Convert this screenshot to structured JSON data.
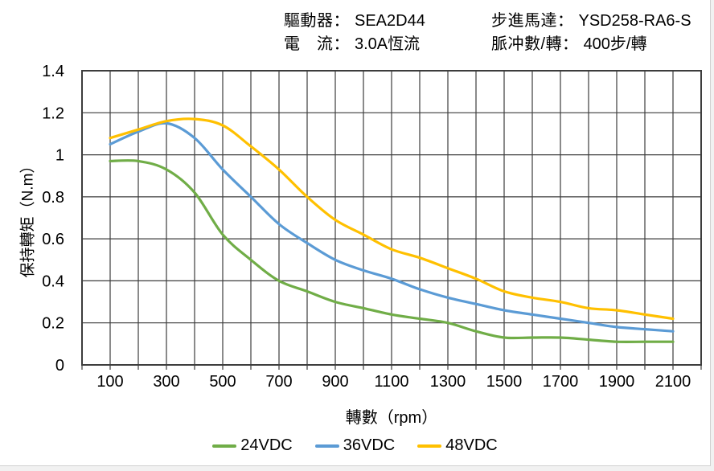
{
  "header": {
    "driver_label": "驅動器：",
    "driver_value": "SEA2D44",
    "current_label": "電　流：",
    "current_value": "3.0A恆流",
    "motor_label": "步進馬達：",
    "motor_value": "YSD258-RA6-S",
    "pulses_label": "脈冲數/轉：",
    "pulses_value": "400步/轉"
  },
  "colors": {
    "grid": "#3d3d3d",
    "text": "#000000",
    "background": "#ffffff",
    "series_green": "#70AD47",
    "series_blue": "#5B9BD5",
    "series_yellow": "#FFC000"
  },
  "chart_data": {
    "type": "line",
    "title": "",
    "xlabel": "轉數（rpm）",
    "ylabel": "保持轉矩（N.m）",
    "xlim": [
      0,
      2200
    ],
    "ylim": [
      0,
      1.4
    ],
    "x_grid_step": 100,
    "y_grid_step": 0.2,
    "grid": true,
    "legend_position": "bottom",
    "x_ticks": [
      100,
      300,
      500,
      700,
      900,
      1100,
      1300,
      1500,
      1700,
      1900,
      2100
    ],
    "y_ticks": [
      [
        0,
        "0"
      ],
      [
        0.2,
        "0.2"
      ],
      [
        0.4,
        "0.4"
      ],
      [
        0.6,
        "0.6"
      ],
      [
        0.8,
        "0.8"
      ],
      [
        1,
        "1"
      ],
      [
        1.2,
        "1.2"
      ],
      [
        1.4,
        "1.4"
      ]
    ],
    "x": [
      100,
      200,
      300,
      400,
      500,
      600,
      700,
      800,
      900,
      1000,
      1100,
      1200,
      1300,
      1400,
      1500,
      1600,
      1700,
      1800,
      1900,
      2000,
      2100
    ],
    "series": [
      {
        "name": "24VDC",
        "color": "#70AD47",
        "values": [
          0.97,
          0.97,
          0.93,
          0.82,
          0.62,
          0.5,
          0.4,
          0.35,
          0.3,
          0.27,
          0.24,
          0.22,
          0.2,
          0.16,
          0.13,
          0.13,
          0.13,
          0.12,
          0.11,
          0.11,
          0.11
        ]
      },
      {
        "name": "36VDC",
        "color": "#5B9BD5",
        "values": [
          1.05,
          1.11,
          1.15,
          1.08,
          0.93,
          0.8,
          0.67,
          0.58,
          0.5,
          0.45,
          0.41,
          0.36,
          0.32,
          0.29,
          0.26,
          0.24,
          0.22,
          0.2,
          0.18,
          0.17,
          0.16
        ]
      },
      {
        "name": "48VDC",
        "color": "#FFC000",
        "values": [
          1.08,
          1.12,
          1.16,
          1.17,
          1.14,
          1.04,
          0.93,
          0.8,
          0.69,
          0.62,
          0.55,
          0.51,
          0.46,
          0.41,
          0.35,
          0.32,
          0.3,
          0.27,
          0.26,
          0.24,
          0.22
        ]
      }
    ]
  }
}
